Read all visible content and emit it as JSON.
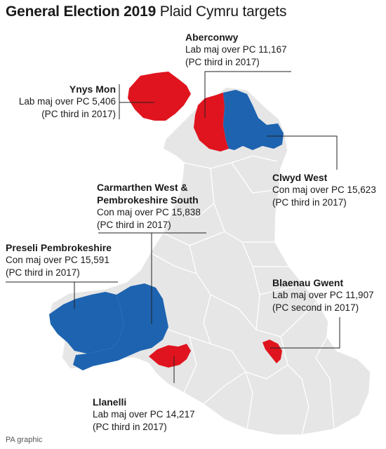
{
  "title": {
    "bold": "General Election 2019",
    "regular": "Plaid Cymru targets"
  },
  "colors": {
    "labour_target": "#e0141e",
    "conservative_target": "#1d63b0",
    "land": "#e6e6e6",
    "boundary": "#ffffff",
    "leader_line": "#222222"
  },
  "constituencies": [
    {
      "id": "aberconwy",
      "name": "Aberconwy",
      "line1": "Lab maj over PC 11,167",
      "line2": "(PC third in 2017)",
      "holder": "Lab",
      "majority": 11167
    },
    {
      "id": "ynys-mon",
      "name": "Ynys Mon",
      "line1": "Lab maj over PC 5,406",
      "line2": "(PC third in 2017)",
      "holder": "Lab",
      "majority": 5406
    },
    {
      "id": "clwyd-west",
      "name": "Clwyd West",
      "line1": "Con maj over PC 15,623",
      "line2": "(PC third in 2017)",
      "holder": "Con",
      "majority": 15623
    },
    {
      "id": "carmarthen-west",
      "name": "Carmarthen West &",
      "name2": "Pembrokeshire South",
      "line1": "Con maj over PC 15,838",
      "line2": "(PC third in 2017)",
      "holder": "Con",
      "majority": 15838
    },
    {
      "id": "preseli",
      "name": "Preseli Pembrokeshire",
      "line1": "Con maj over PC 15,591",
      "line2": "(PC third in 2017)",
      "holder": "Con",
      "majority": 15591
    },
    {
      "id": "blaenau-gwent",
      "name": "Blaenau Gwent",
      "line1": "Lab maj over PC 11,907",
      "line2": "(PC second in 2017)",
      "holder": "Lab",
      "majority": 11907
    },
    {
      "id": "llanelli",
      "name": "Llanelli",
      "line1": "Lab maj over PC 14,217",
      "line2": "(PC third in 2017)",
      "holder": "Lab",
      "majority": 14217
    }
  ],
  "credit": "PA graphic"
}
